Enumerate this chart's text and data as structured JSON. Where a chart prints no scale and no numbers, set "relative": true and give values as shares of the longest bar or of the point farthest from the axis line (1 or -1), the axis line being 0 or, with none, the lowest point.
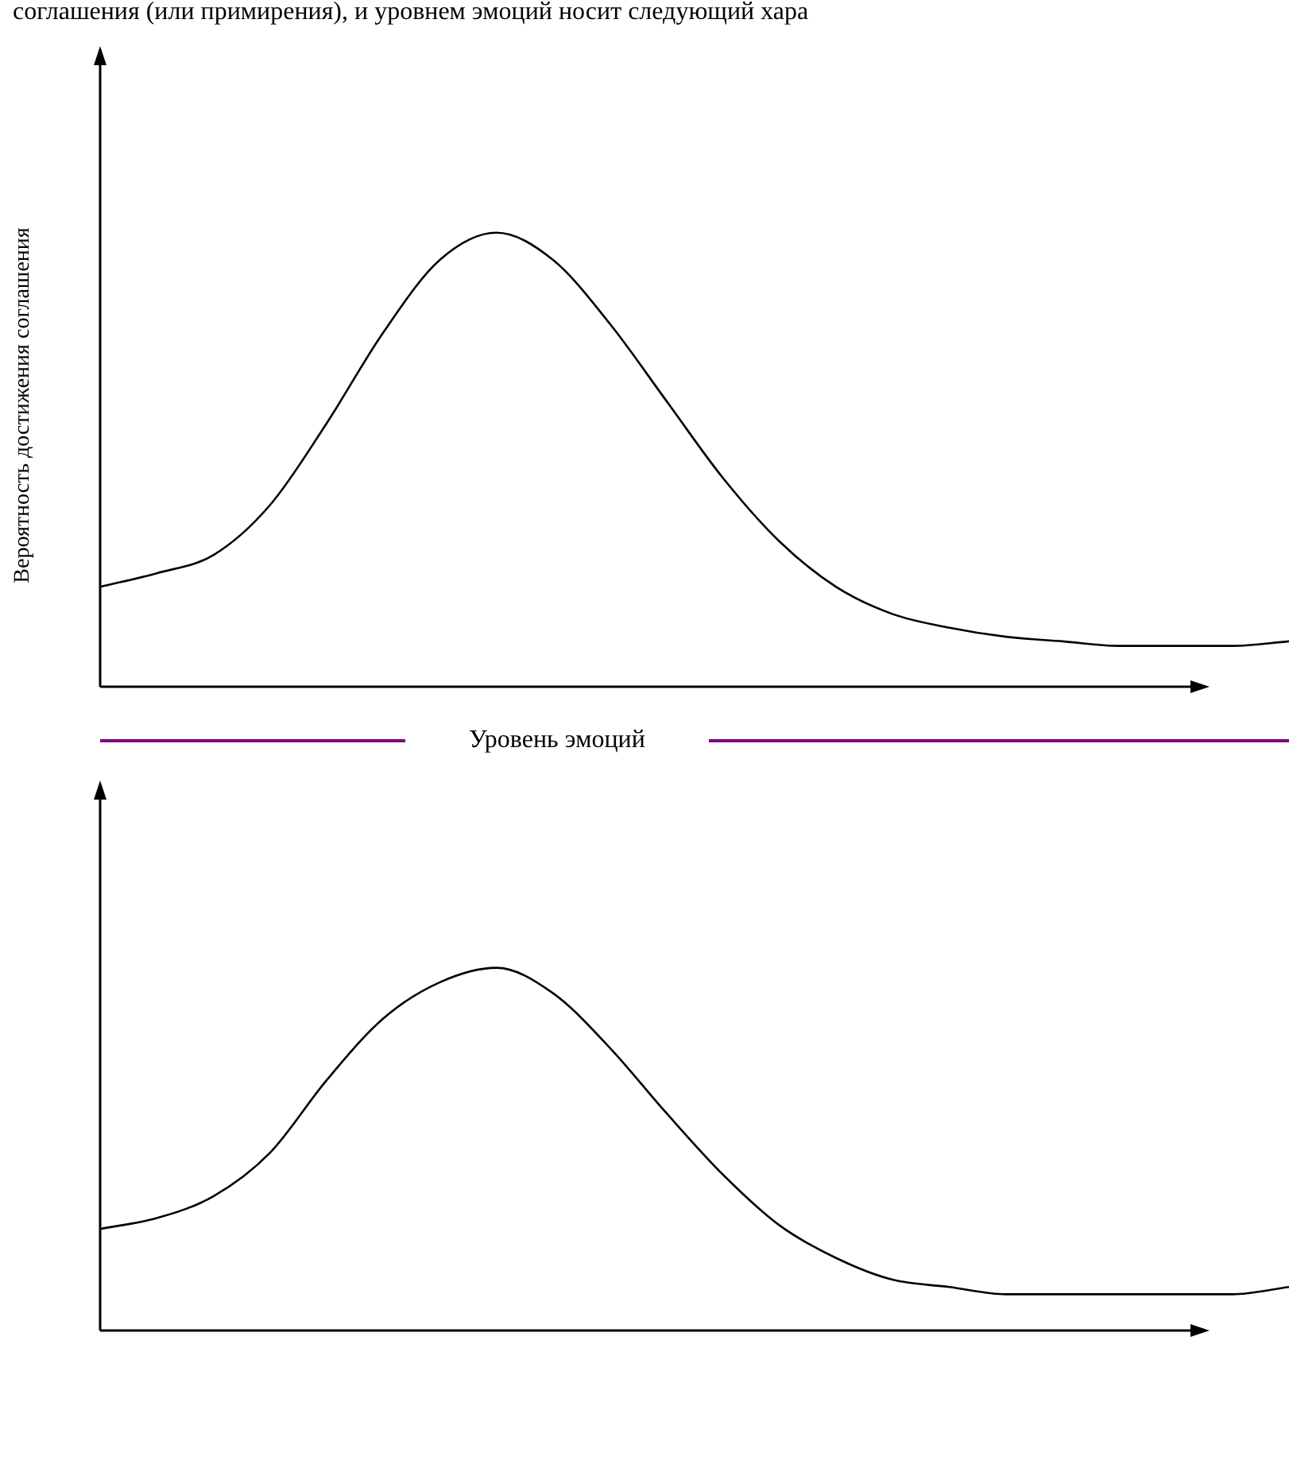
{
  "chart_data": [
    {
      "type": "line",
      "relative": true,
      "marker": "none",
      "color": "#000000",
      "annotations": [
        "соглашения (или примирения), и уровнем эмоций носит следующий хара"
      ],
      "xlabel": "Уровень эмоций",
      "ylabel": "Вероятность достижения соглашения",
      "categories": [
        null,
        null,
        null,
        null,
        null,
        null,
        null,
        null,
        null,
        null,
        null,
        null,
        null,
        null,
        null,
        null,
        null,
        null,
        null,
        null,
        null,
        null
      ],
      "values": [
        0.22,
        0.25,
        0.29,
        0.4,
        0.58,
        0.78,
        0.94,
        1,
        0.94,
        0.8,
        0.63,
        0.46,
        0.32,
        0.22,
        0.16,
        0.13,
        0.11,
        0.1,
        0.09,
        0.09,
        0.09,
        0.1
      ]
    },
    {
      "type": "line",
      "relative": true,
      "marker": "none",
      "color": "#000000",
      "categories": [
        null,
        null,
        null,
        null,
        null,
        null,
        null,
        null,
        null,
        null,
        null,
        null,
        null,
        null,
        null,
        null,
        null,
        null,
        null,
        null,
        null,
        null
      ],
      "values": [
        0.28,
        0.31,
        0.37,
        0.49,
        0.69,
        0.86,
        0.96,
        1,
        0.93,
        0.78,
        0.6,
        0.43,
        0.29,
        0.2,
        0.14,
        0.12,
        0.1,
        0.1,
        0.1,
        0.1,
        0.1,
        0.12
      ]
    }
  ]
}
